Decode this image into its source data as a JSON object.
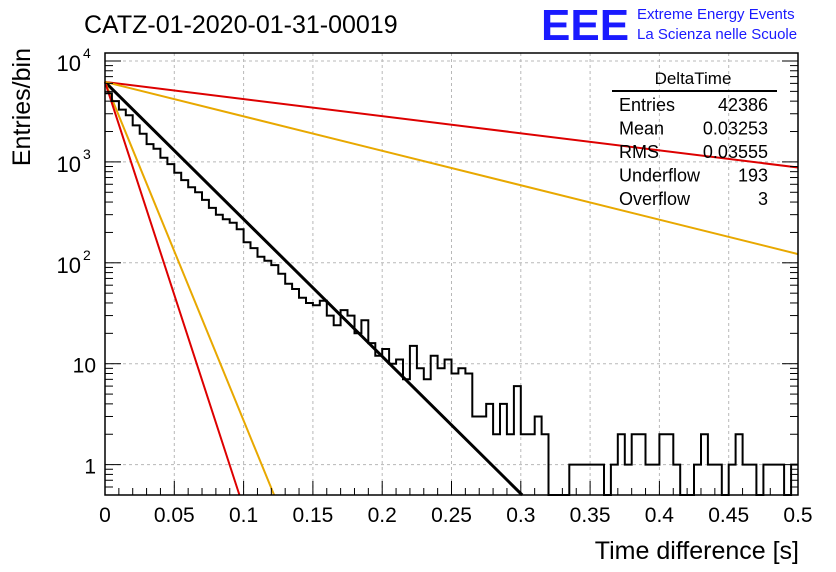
{
  "chart_data": {
    "type": "histogram",
    "title": "CATZ-01-2020-01-31-00019",
    "xlabel": "Time difference [s]",
    "ylabel": "Entries/bin",
    "yscale": "log",
    "xlim": [
      0,
      0.5
    ],
    "ylim": [
      0.5,
      12000
    ],
    "grid": true,
    "x_ticks": [
      "0",
      "0.05",
      "0.1",
      "0.15",
      "0.2",
      "0.25",
      "0.3",
      "0.35",
      "0.4",
      "0.45",
      "0.5"
    ],
    "x_tick_values": [
      0,
      0.05,
      0.1,
      0.15,
      0.2,
      0.25,
      0.3,
      0.35,
      0.4,
      0.45,
      0.5
    ],
    "y_ticks": [
      {
        "value": 1,
        "label": "1",
        "sup": ""
      },
      {
        "value": 10,
        "label": "10",
        "sup": ""
      },
      {
        "value": 100,
        "label": "10",
        "sup": "2"
      },
      {
        "value": 1000,
        "label": "10",
        "sup": "3"
      },
      {
        "value": 10000,
        "label": "10",
        "sup": "4"
      }
    ],
    "logo": {
      "text": "EEE",
      "line1": "Extreme Energy Events",
      "line2": "La Scienza nelle Scuole",
      "color": "#1a1aff"
    },
    "stats_box": {
      "title": "DeltaTime",
      "rows": [
        {
          "label": "Entries",
          "value": "42386"
        },
        {
          "label": "Mean",
          "value": "0.03253"
        },
        {
          "label": "RMS",
          "value": "0.03555"
        },
        {
          "label": "Underflow",
          "value": "193"
        },
        {
          "label": "Overflow",
          "value": "3"
        }
      ]
    },
    "histogram": {
      "bin_width": 0.005,
      "color": "#000000",
      "bins": [
        {
          "x": 0.005,
          "y": 4800
        },
        {
          "x": 0.01,
          "y": 4000
        },
        {
          "x": 0.015,
          "y": 3300
        },
        {
          "x": 0.02,
          "y": 2900
        },
        {
          "x": 0.025,
          "y": 2300
        },
        {
          "x": 0.03,
          "y": 1900
        },
        {
          "x": 0.035,
          "y": 1500
        },
        {
          "x": 0.04,
          "y": 1350
        },
        {
          "x": 0.045,
          "y": 1100
        },
        {
          "x": 0.05,
          "y": 950
        },
        {
          "x": 0.055,
          "y": 780
        },
        {
          "x": 0.06,
          "y": 660
        },
        {
          "x": 0.065,
          "y": 560
        },
        {
          "x": 0.07,
          "y": 500
        },
        {
          "x": 0.075,
          "y": 420
        },
        {
          "x": 0.08,
          "y": 350
        },
        {
          "x": 0.085,
          "y": 300
        },
        {
          "x": 0.09,
          "y": 270
        },
        {
          "x": 0.095,
          "y": 250
        },
        {
          "x": 0.1,
          "y": 215
        },
        {
          "x": 0.105,
          "y": 160
        },
        {
          "x": 0.11,
          "y": 140
        },
        {
          "x": 0.115,
          "y": 115
        },
        {
          "x": 0.12,
          "y": 105
        },
        {
          "x": 0.125,
          "y": 95
        },
        {
          "x": 0.13,
          "y": 78
        },
        {
          "x": 0.135,
          "y": 62
        },
        {
          "x": 0.14,
          "y": 55
        },
        {
          "x": 0.145,
          "y": 45
        },
        {
          "x": 0.15,
          "y": 40
        },
        {
          "x": 0.155,
          "y": 38
        },
        {
          "x": 0.16,
          "y": 42
        },
        {
          "x": 0.165,
          "y": 30
        },
        {
          "x": 0.17,
          "y": 24
        },
        {
          "x": 0.175,
          "y": 34
        },
        {
          "x": 0.18,
          "y": 30
        },
        {
          "x": 0.185,
          "y": 20
        },
        {
          "x": 0.19,
          "y": 27
        },
        {
          "x": 0.195,
          "y": 16
        },
        {
          "x": 0.2,
          "y": 12
        },
        {
          "x": 0.205,
          "y": 14
        },
        {
          "x": 0.21,
          "y": 10
        },
        {
          "x": 0.215,
          "y": 11
        },
        {
          "x": 0.22,
          "y": 7
        },
        {
          "x": 0.225,
          "y": 15
        },
        {
          "x": 0.23,
          "y": 9
        },
        {
          "x": 0.235,
          "y": 7
        },
        {
          "x": 0.24,
          "y": 12
        },
        {
          "x": 0.245,
          "y": 9
        },
        {
          "x": 0.25,
          "y": 11
        },
        {
          "x": 0.255,
          "y": 8
        },
        {
          "x": 0.26,
          "y": 9
        },
        {
          "x": 0.265,
          "y": 8
        },
        {
          "x": 0.27,
          "y": 3
        },
        {
          "x": 0.275,
          "y": 3
        },
        {
          "x": 0.28,
          "y": 4
        },
        {
          "x": 0.285,
          "y": 2
        },
        {
          "x": 0.29,
          "y": 4
        },
        {
          "x": 0.295,
          "y": 2
        },
        {
          "x": 0.3,
          "y": 6
        },
        {
          "x": 0.305,
          "y": 2
        },
        {
          "x": 0.31,
          "y": 2
        },
        {
          "x": 0.315,
          "y": 3
        },
        {
          "x": 0.32,
          "y": 2
        },
        {
          "x": 0.325,
          "y": 0.5
        },
        {
          "x": 0.33,
          "y": 0.5
        },
        {
          "x": 0.335,
          "y": 0.5
        },
        {
          "x": 0.34,
          "y": 1
        },
        {
          "x": 0.345,
          "y": 1
        },
        {
          "x": 0.35,
          "y": 1
        },
        {
          "x": 0.355,
          "y": 1
        },
        {
          "x": 0.36,
          "y": 1
        },
        {
          "x": 0.365,
          "y": 0.5
        },
        {
          "x": 0.37,
          "y": 1
        },
        {
          "x": 0.375,
          "y": 2
        },
        {
          "x": 0.38,
          "y": 1
        },
        {
          "x": 0.385,
          "y": 2
        },
        {
          "x": 0.39,
          "y": 2
        },
        {
          "x": 0.395,
          "y": 1
        },
        {
          "x": 0.4,
          "y": 1
        },
        {
          "x": 0.405,
          "y": 2
        },
        {
          "x": 0.41,
          "y": 2
        },
        {
          "x": 0.415,
          "y": 1
        },
        {
          "x": 0.42,
          "y": 0.5
        },
        {
          "x": 0.425,
          "y": 0.5
        },
        {
          "x": 0.43,
          "y": 1
        },
        {
          "x": 0.435,
          "y": 2
        },
        {
          "x": 0.44,
          "y": 1
        },
        {
          "x": 0.445,
          "y": 1
        },
        {
          "x": 0.45,
          "y": 0.5
        },
        {
          "x": 0.455,
          "y": 1
        },
        {
          "x": 0.46,
          "y": 2
        },
        {
          "x": 0.465,
          "y": 1
        },
        {
          "x": 0.47,
          "y": 1
        },
        {
          "x": 0.475,
          "y": 0.5
        },
        {
          "x": 0.48,
          "y": 1
        },
        {
          "x": 0.485,
          "y": 1
        },
        {
          "x": 0.49,
          "y": 1
        },
        {
          "x": 0.495,
          "y": 0.5
        },
        {
          "x": 0.5,
          "y": 1
        }
      ]
    },
    "curves": [
      {
        "color": "#000000",
        "width": 3,
        "y0": 6200,
        "x_end": 0.301,
        "y_end": 0.5
      },
      {
        "color": "#e8a800",
        "width": 2,
        "y0": 6200,
        "x_end": 0.122,
        "y_end": 0.5
      },
      {
        "color": "#dd0000",
        "width": 2,
        "y0": 6200,
        "x_end": 0.097,
        "y_end": 0.5
      },
      {
        "color": "#dd0000",
        "width": 2,
        "y0": 6200,
        "x_end": 0.5,
        "y_end": 880
      },
      {
        "color": "#e8a800",
        "width": 2,
        "y0": 6200,
        "x_end": 0.5,
        "y_end": 122
      }
    ]
  }
}
